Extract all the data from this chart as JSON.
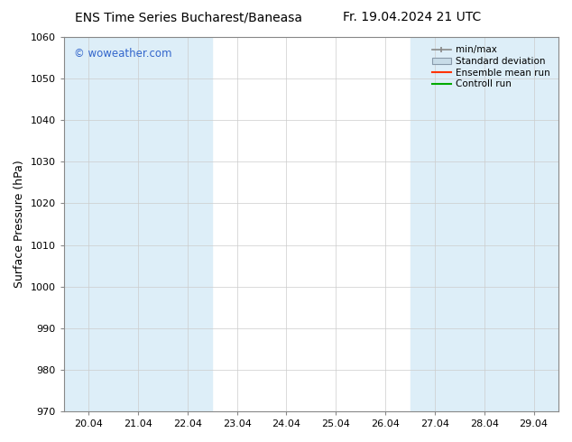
{
  "title_left": "ENS Time Series Bucharest/Baneasa",
  "title_right": "Fr. 19.04.2024 21 UTC",
  "ylabel": "Surface Pressure (hPa)",
  "ylim": [
    970,
    1060
  ],
  "yticks": [
    970,
    980,
    990,
    1000,
    1010,
    1020,
    1030,
    1040,
    1050,
    1060
  ],
  "x_labels": [
    "20.04",
    "21.04",
    "22.04",
    "23.04",
    "24.04",
    "25.04",
    "26.04",
    "27.04",
    "28.04",
    "29.04"
  ],
  "x_positions": [
    0,
    1,
    2,
    3,
    4,
    5,
    6,
    7,
    8,
    9
  ],
  "shaded_indices": [
    0,
    2,
    4,
    6,
    8
  ],
  "band_color": "#ddeef8",
  "watermark_text": "© woweather.com",
  "watermark_color": "#3366cc",
  "bg_color": "#ffffff",
  "plot_bg": "#ffffff",
  "legend_labels": [
    "min/max",
    "Standard deviation",
    "Ensemble mean run",
    "Controll run"
  ],
  "legend_minmax_color": "#999999",
  "legend_std_color": "#c8dce8",
  "legend_ensemble_color": "#ff3300",
  "legend_control_color": "#00aa00",
  "title_fontsize": 10,
  "tick_fontsize": 8,
  "ylabel_fontsize": 9,
  "legend_fontsize": 7.5,
  "grid_color": "#cccccc",
  "spine_color": "#888888"
}
